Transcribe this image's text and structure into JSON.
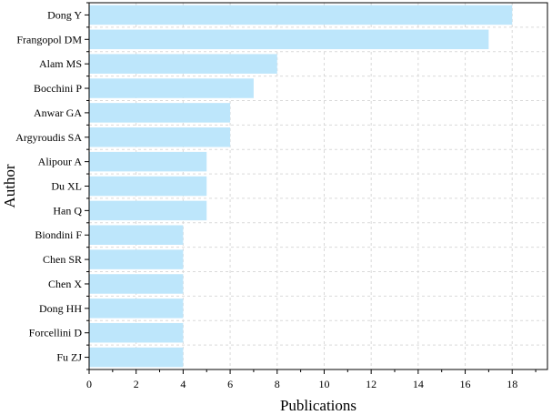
{
  "chart_data": {
    "type": "bar",
    "orientation": "horizontal",
    "categories": [
      "Dong Y",
      "Frangopol DM",
      "Alam MS",
      "Bocchini P",
      "Anwar GA",
      "Argyroudis SA",
      "Alipour A",
      "Du XL",
      "Han Q",
      "Biondini F",
      "Chen SR",
      "Chen X",
      "Dong HH",
      "Forcellini D",
      "Fu ZJ"
    ],
    "values": [
      18,
      17,
      8,
      7,
      6,
      6,
      5,
      5,
      5,
      4,
      4,
      4,
      4,
      4,
      4
    ],
    "xlabel": "Publications",
    "ylabel": "Author",
    "xlim": [
      0,
      19.5
    ],
    "xticks": [
      "0",
      "2",
      "4",
      "6",
      "8",
      "10",
      "12",
      "14",
      "16",
      "18"
    ],
    "grid": "vertical dashed",
    "colors": {
      "bar": "#bde6fb",
      "grid": "#d9d9d9",
      "axis": "#000000"
    }
  }
}
